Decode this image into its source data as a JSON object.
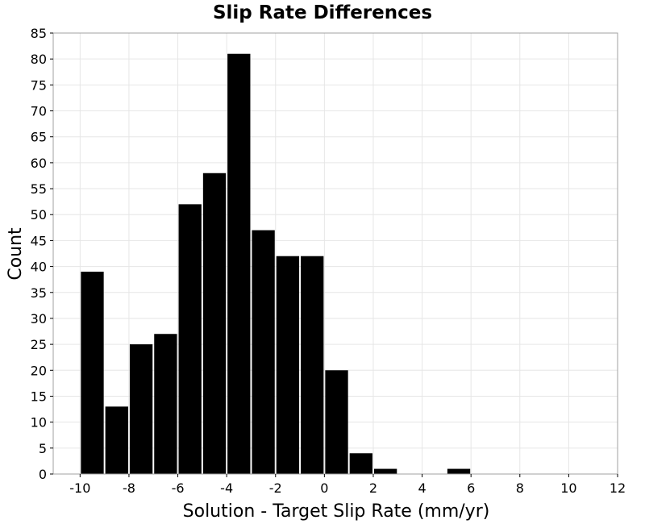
{
  "chart_data": {
    "type": "bar",
    "title": "Slip Rate Differences",
    "xlabel": "Solution - Target Slip Rate (mm/yr)",
    "ylabel": "Count",
    "xlim": [
      -11.1,
      12
    ],
    "ylim": [
      0,
      85
    ],
    "bin_width": 1,
    "x": [
      -9.5,
      -8.5,
      -7.5,
      -6.5,
      -5.5,
      -4.5,
      -3.5,
      -2.5,
      -1.5,
      -0.5,
      0.5,
      1.5,
      2.5,
      3.5,
      4.5,
      5.5
    ],
    "values": [
      39,
      13,
      25,
      27,
      52,
      58,
      81,
      47,
      42,
      42,
      20,
      4,
      1,
      0,
      0,
      1
    ],
    "x_ticks": [
      -10,
      -8,
      -6,
      -4,
      -2,
      0,
      2,
      4,
      6,
      8,
      10,
      12
    ],
    "y_ticks": [
      0,
      5,
      10,
      15,
      20,
      25,
      30,
      35,
      40,
      45,
      50,
      55,
      60,
      65,
      70,
      75,
      80,
      85
    ],
    "grid": true,
    "bar_color": "#000000",
    "grid_color": "#e6e6e6"
  }
}
